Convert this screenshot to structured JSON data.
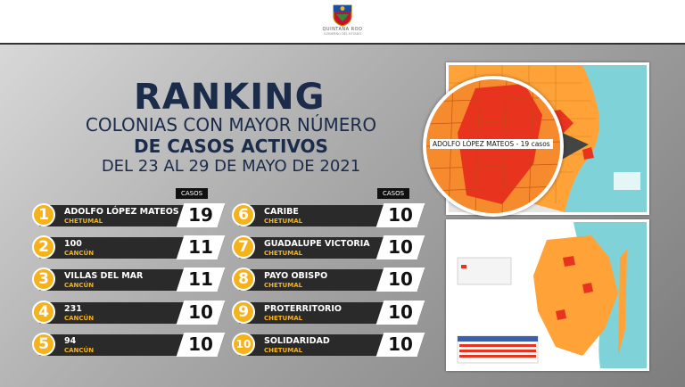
{
  "header": {
    "logo_text": "QUINTANA ROO",
    "logo_subtext": "GOBIERNO DEL ESTADO"
  },
  "title": "RANKING",
  "subtitle_line1": "COLONIAS CON MAYOR NÚMERO",
  "subtitle_line2": "DE CASOS ACTIVOS",
  "date_range": "DEL 23 AL 29 DE MAYO DE 2021",
  "casos_label": "CASOS",
  "ranking": [
    {
      "rank": "1",
      "name": "ADOLFO LÓPEZ MATEOS",
      "city": "CHETUMAL",
      "cases": "19"
    },
    {
      "rank": "2",
      "name": "100",
      "city": "CANCÚN",
      "cases": "11"
    },
    {
      "rank": "3",
      "name": "VILLAS DEL MAR",
      "city": "CANCÚN",
      "cases": "11"
    },
    {
      "rank": "4",
      "name": "231",
      "city": "CANCÚN",
      "cases": "10"
    },
    {
      "rank": "5",
      "name": "94",
      "city": "CANCÚN",
      "cases": "10"
    },
    {
      "rank": "6",
      "name": "CARIBE",
      "city": "CHETUMAL",
      "cases": "10"
    },
    {
      "rank": "7",
      "name": "GUADALUPE VICTORIA",
      "city": "CHETUMAL",
      "cases": "10"
    },
    {
      "rank": "8",
      "name": "PAYO OBISPO",
      "city": "CHETUMAL",
      "cases": "10"
    },
    {
      "rank": "9",
      "name": "PROTERRITORIO",
      "city": "CHETUMAL",
      "cases": "10"
    },
    {
      "rank": "10",
      "name": "SOLIDARIDAD",
      "city": "CHETUMAL",
      "cases": "10"
    }
  ],
  "map_callout": "ADOLFO LÓPEZ MATEOS - 19 casos",
  "colors": {
    "navy": "#1b2b4a",
    "accent": "#f5b21b",
    "bar": "#2a2a2a",
    "map_orange": "#ffa338",
    "map_red": "#e8331e"
  }
}
